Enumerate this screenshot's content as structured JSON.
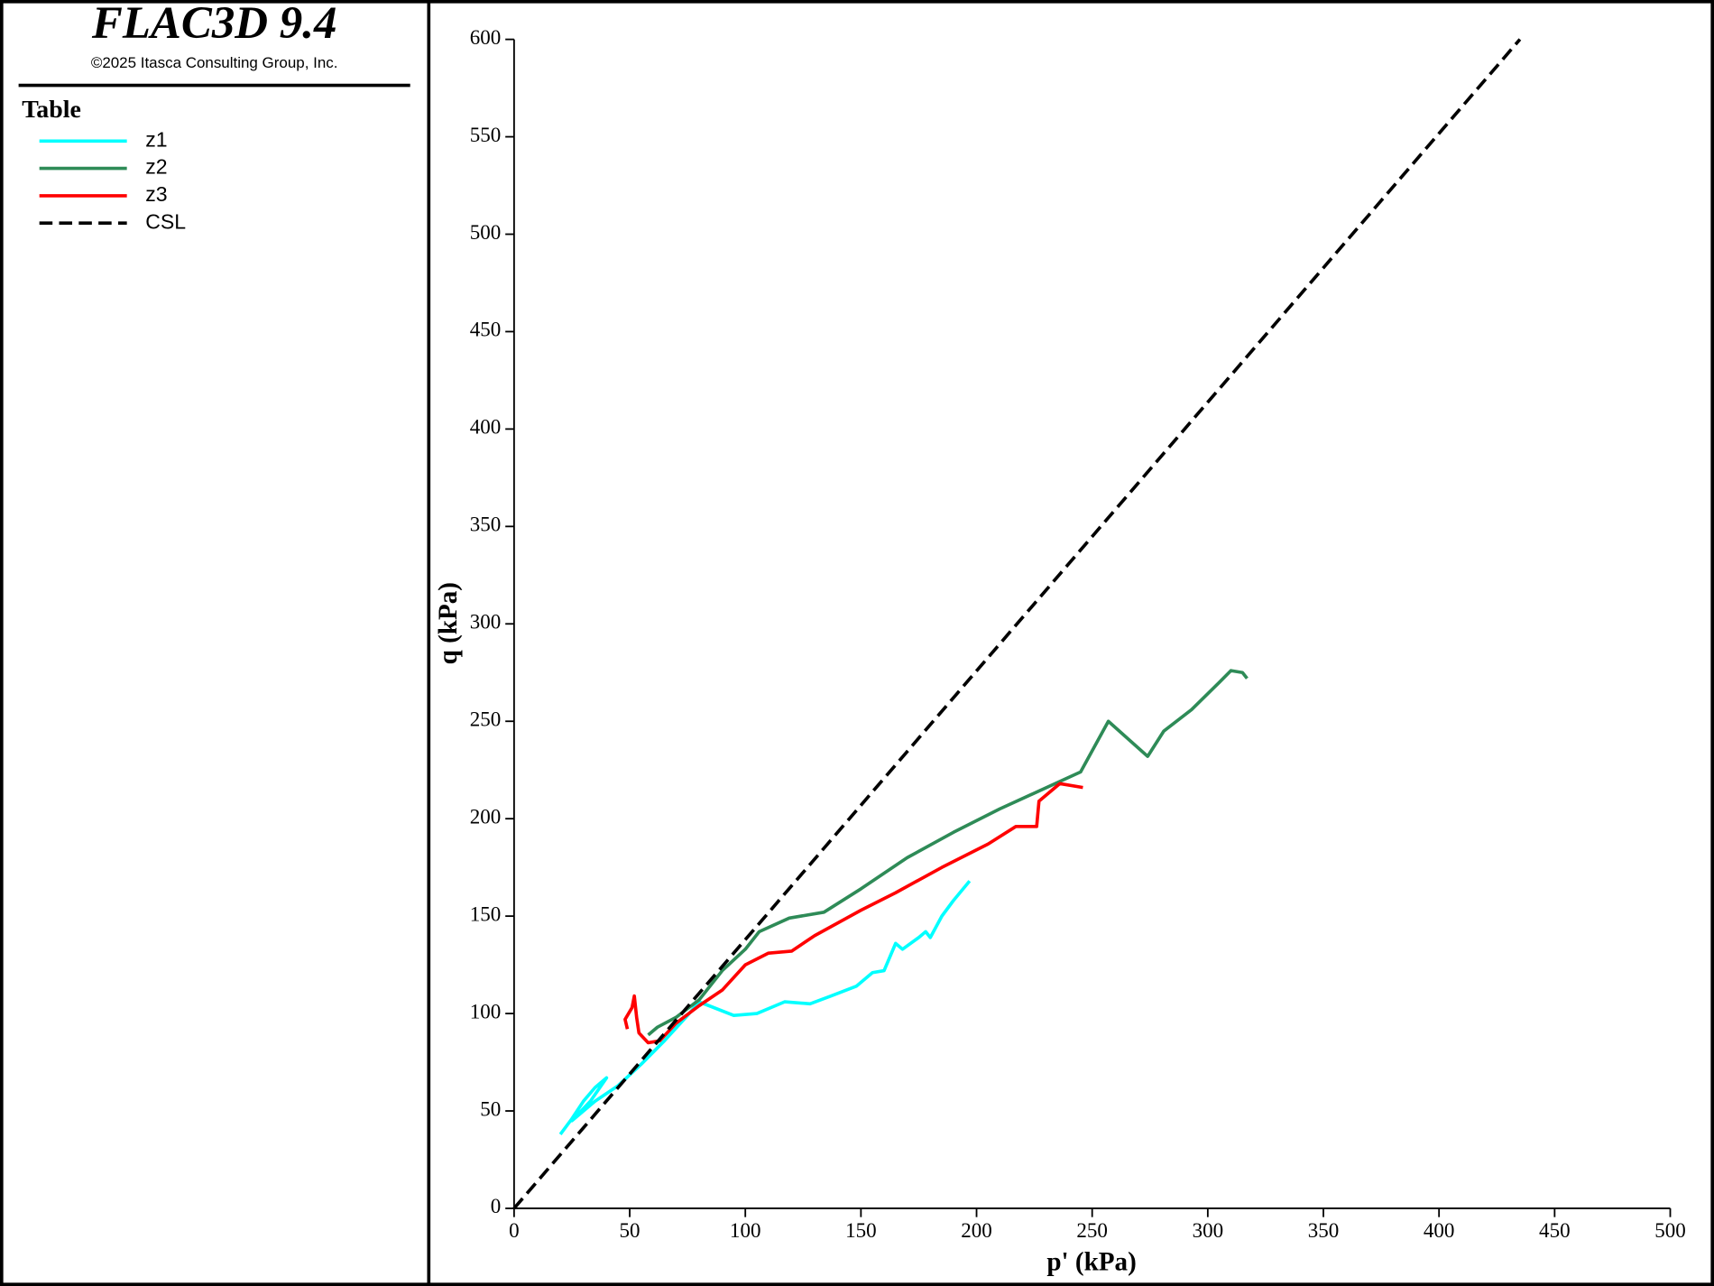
{
  "chart_data": {
    "type": "line",
    "app_title": "FLAC3D 9.4",
    "copyright": "©2025 Itasca Consulting Group, Inc.",
    "legend_title": "Table",
    "xlabel": "p' (kPa)",
    "ylabel": "q (kPa)",
    "xlim": [
      0,
      500
    ],
    "ylim": [
      0,
      600
    ],
    "xticks": [
      0,
      50,
      100,
      150,
      200,
      250,
      300,
      350,
      400,
      450,
      500
    ],
    "yticks": [
      0,
      50,
      100,
      150,
      200,
      250,
      300,
      350,
      400,
      450,
      500,
      550,
      600
    ],
    "series": [
      {
        "name": "z1",
        "color": "#00ffff",
        "style": "solid",
        "x": [
          20,
          25,
          30,
          35,
          40,
          33,
          25,
          35,
          45,
          55,
          65,
          75,
          80,
          95,
          105,
          117,
          128,
          137,
          148,
          155,
          160,
          165,
          168,
          175,
          178,
          180,
          185,
          190,
          197
        ],
        "values": [
          38,
          46,
          55,
          62,
          67,
          55,
          45,
          55,
          63,
          74,
          86,
          99,
          106,
          99,
          100,
          106,
          105,
          109,
          114,
          121,
          122,
          136,
          133,
          139,
          142,
          139,
          150,
          158,
          168
        ]
      },
      {
        "name": "z2",
        "color": "#2e8b57",
        "style": "solid",
        "x": [
          58,
          62,
          70,
          80,
          90,
          100,
          106,
          119,
          134,
          150,
          170,
          190,
          210,
          245,
          257,
          274,
          281,
          293,
          305,
          310,
          315,
          317
        ],
        "values": [
          89,
          93,
          98,
          107,
          122,
          133,
          142,
          149,
          152,
          164,
          180,
          193,
          205,
          224,
          250,
          232,
          245,
          256,
          270,
          276,
          275,
          272
        ]
      },
      {
        "name": "z3",
        "color": "#ff0000",
        "style": "solid",
        "x": [
          49,
          48,
          51,
          52,
          53,
          54,
          58,
          63,
          70,
          80,
          90,
          100,
          110,
          120,
          130,
          150,
          165,
          185,
          205,
          217,
          226,
          227,
          236,
          246
        ],
        "values": [
          92,
          97,
          103,
          109,
          98,
          90,
          85,
          86,
          95,
          104,
          112,
          125,
          131,
          132,
          140,
          153,
          162,
          175,
          187,
          196,
          196,
          209,
          218,
          216
        ]
      },
      {
        "name": "CSL",
        "color": "#000000",
        "style": "dashed",
        "x": [
          0,
          435
        ],
        "values": [
          0,
          600
        ]
      }
    ]
  }
}
